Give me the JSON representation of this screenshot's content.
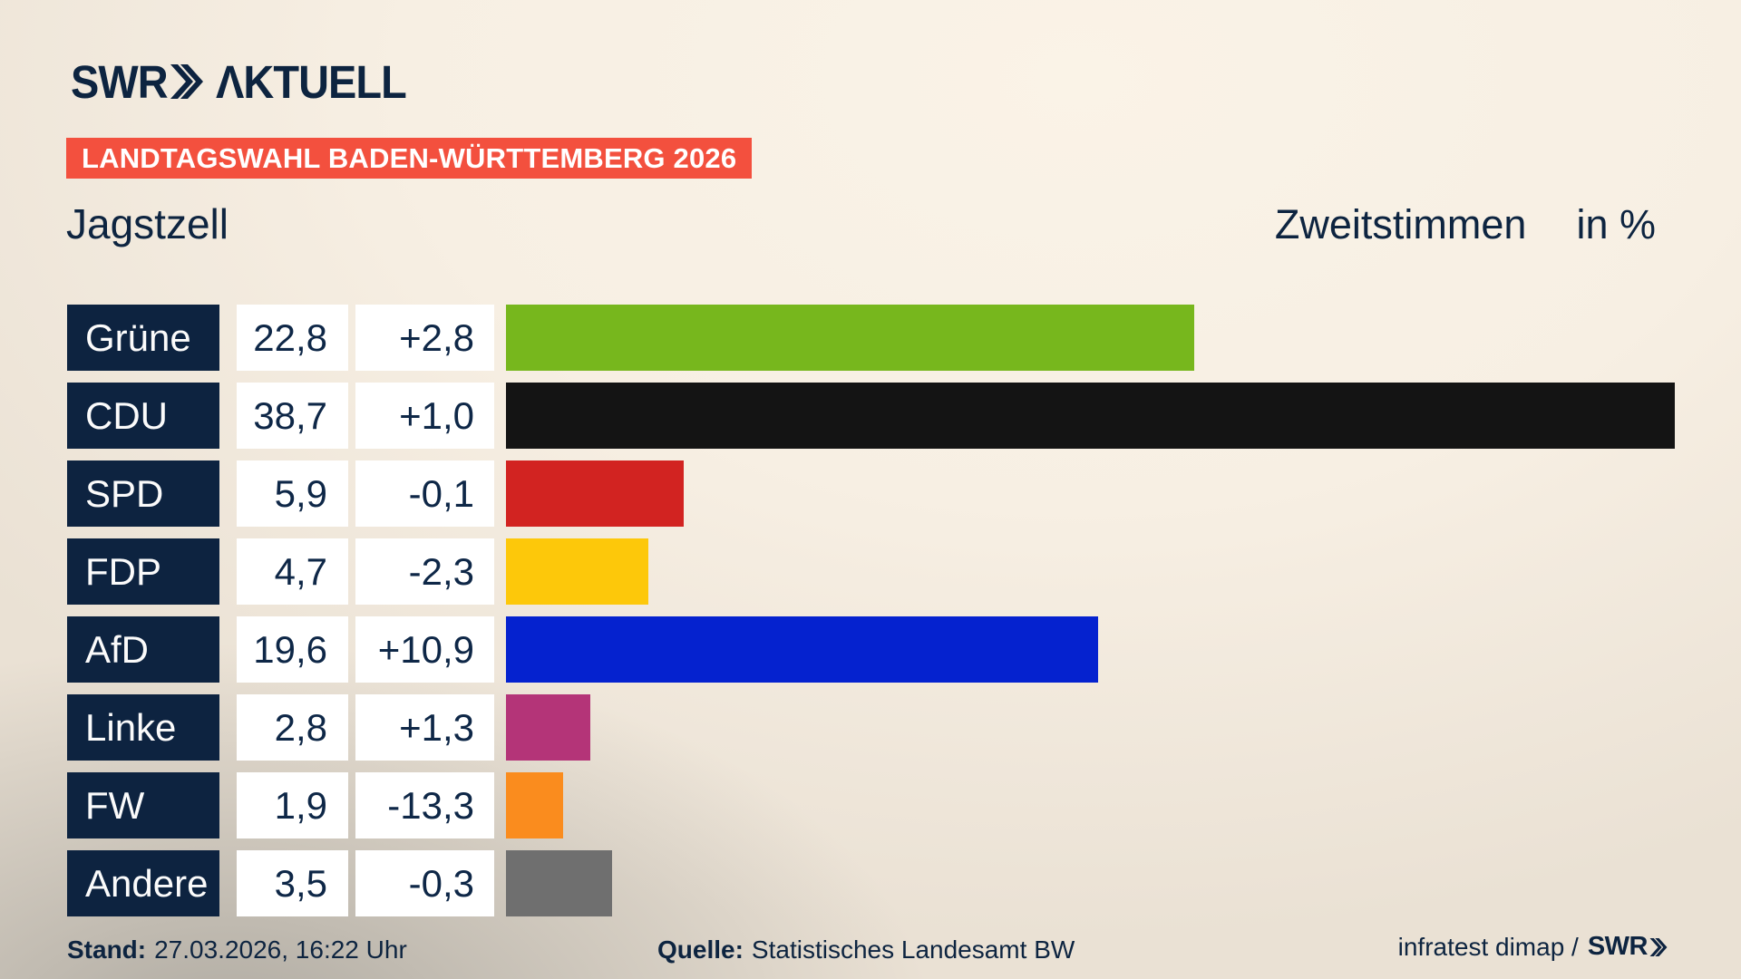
{
  "header": {
    "logo": {
      "brand": "SWR",
      "product": "ΛKTUELL"
    },
    "banner": "LANDTAGSWAHL BADEN-WÜRTTEMBERG 2026",
    "municipality": "Jagstzell",
    "measure_label": "Zweitstimmen",
    "unit_label": "in %"
  },
  "chart_data": {
    "type": "bar",
    "orientation": "horizontal",
    "title": "Jagstzell",
    "subtitle": "Zweitstimmen in %",
    "unit": "%",
    "xlim": [
      0,
      40.9
    ],
    "grid": false,
    "legend": false,
    "categories": [
      "Grüne",
      "CDU",
      "SPD",
      "FDP",
      "AfD",
      "Linke",
      "FW",
      "Andere"
    ],
    "values": [
      22.8,
      38.7,
      5.9,
      4.7,
      19.6,
      2.8,
      1.9,
      3.5
    ],
    "changes": [
      2.8,
      1.0,
      -0.1,
      -2.3,
      10.9,
      1.3,
      -13.3,
      -0.3
    ],
    "rows": [
      {
        "party": "Grüne",
        "value": 22.8,
        "value_label": "22,8",
        "change_label": "+2,8",
        "color": "#77b71d"
      },
      {
        "party": "CDU",
        "value": 38.7,
        "value_label": "38,7",
        "change_label": "+1,0",
        "color": "#141414"
      },
      {
        "party": "SPD",
        "value": 5.9,
        "value_label": "5,9",
        "change_label": "-0,1",
        "color": "#d22321"
      },
      {
        "party": "FDP",
        "value": 4.7,
        "value_label": "4,7",
        "change_label": "-2,3",
        "color": "#fdc80a"
      },
      {
        "party": "AfD",
        "value": 19.6,
        "value_label": "19,6",
        "change_label": "+10,9",
        "color": "#0522cf"
      },
      {
        "party": "Linke",
        "value": 2.8,
        "value_label": "2,8",
        "change_label": "+1,3",
        "color": "#b43478"
      },
      {
        "party": "FW",
        "value": 1.9,
        "value_label": "1,9",
        "change_label": "-13,3",
        "color": "#fa8c1e"
      },
      {
        "party": "Andere",
        "value": 3.5,
        "value_label": "3,5",
        "change_label": "-0,3",
        "color": "#6f6f6f"
      }
    ]
  },
  "footer": {
    "stand_label": "Stand:",
    "stand_value": "27.03.2026, 16:22 Uhr",
    "quelle_label": "Quelle:",
    "quelle_value": "Statistisches Landesamt BW",
    "credit_text": "infratest dimap /",
    "credit_brand": "SWR"
  },
  "colors": {
    "navy": "#0d2340",
    "banner_red": "#f3503e",
    "background_cream": "#f7efe3",
    "background_gray": "#ccc9c3",
    "box_white": "#ffffff"
  }
}
